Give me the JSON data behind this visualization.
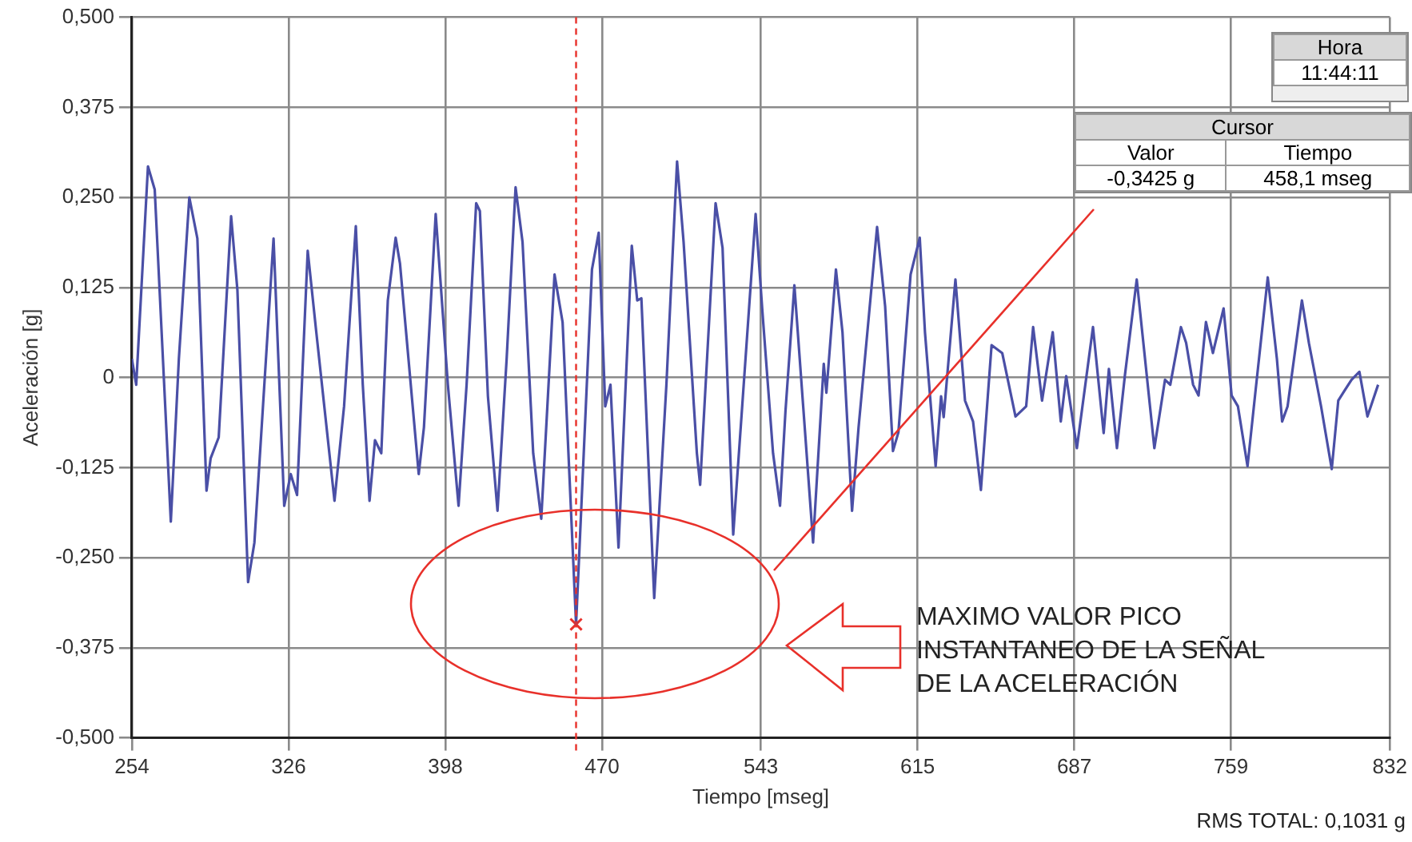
{
  "chart_data": {
    "type": "line",
    "xlabel": "Tiempo [mseg]",
    "ylabel": "Aceleración [g]",
    "xlim": [
      254,
      832
    ],
    "xticks": [
      254,
      326,
      398,
      470,
      543,
      615,
      687,
      759,
      832
    ],
    "ylim": [
      -0.5,
      0.5
    ],
    "yticks": [
      {
        "value": -0.5,
        "label": "-0,500"
      },
      {
        "value": -0.375,
        "label": "-0,375"
      },
      {
        "value": -0.25,
        "label": "-0,250"
      },
      {
        "value": -0.125,
        "label": "-0,125"
      },
      0,
      {
        "value": 0.125,
        "label": "0,125"
      },
      {
        "value": 0.25,
        "label": "0,250"
      },
      {
        "value": 0.375,
        "label": "0,375"
      },
      {
        "value": 0.5,
        "label": "0,500"
      }
    ],
    "grid": true,
    "legend": false,
    "series": [
      {
        "color": "#4a4fa6",
        "marker": "none",
        "x": [
          254.0,
          256.0,
          261.4,
          264.5,
          271.9,
          275.6,
          280.4,
          284.1,
          288.3,
          290.2,
          293.9,
          299.6,
          302.5,
          307.4,
          310.3,
          319.1,
          324.0,
          327.0,
          329.9,
          334.8,
          338.7,
          347.1,
          351.5,
          356.9,
          360.1,
          363.2,
          365.7,
          368.6,
          371.6,
          375.2,
          377.2,
          385.8,
          388.2,
          393.6,
          399.2,
          404.1,
          407.8,
          412.2,
          413.9,
          417.6,
          422.0,
          426.2,
          430.3,
          433.5,
          438.4,
          442.1,
          448.2,
          451.9,
          458.1,
          465.4,
          468.5,
          471.5,
          473.9,
          477.6,
          483.7,
          486.2,
          488.1,
          494.0,
          499.6,
          504.5,
          507.5,
          513.6,
          515.1,
          522.2,
          525.4,
          530.3,
          540.6,
          543.7,
          548.6,
          551.8,
          554.3,
          558.4,
          567.0,
          571.9,
          573.1,
          577.5,
          580.5,
          584.9,
          587.9,
          596.4,
          600.1,
          603.7,
          606.2,
          611.8,
          616.0,
          618.4,
          623.3,
          625.8,
          627.0,
          632.4,
          636.8,
          640.5,
          644.1,
          649.0,
          653.9,
          660.0,
          664.9,
          668.1,
          672.2,
          677.1,
          680.8,
          683.3,
          688.2,
          695.6,
          700.5,
          702.9,
          706.6,
          710.3,
          715.7,
          723.8,
          728.7,
          731.1,
          736.0,
          738.4,
          741.6,
          744.1,
          747.5,
          750.7,
          755.6,
          759.3,
          762.2,
          766.6,
          770.3,
          775.9,
          780.1,
          782.5,
          785.0,
          791.6,
          794.8,
          800.4,
          805.3,
          808.3,
          811.2,
          814.4,
          818.0,
          821.7,
          826.6
        ],
        "values": [
          0.026,
          -0.01,
          0.293,
          0.261,
          -0.2,
          0.026,
          0.25,
          0.193,
          -0.157,
          -0.112,
          -0.083,
          0.224,
          0.121,
          -0.284,
          -0.229,
          0.193,
          -0.178,
          -0.134,
          -0.163,
          0.176,
          0.064,
          -0.171,
          -0.04,
          0.21,
          -0.01,
          -0.171,
          -0.087,
          -0.105,
          0.107,
          0.194,
          0.158,
          -0.134,
          -0.069,
          0.227,
          -0.01,
          -0.178,
          -0.01,
          0.242,
          0.231,
          -0.026,
          -0.185,
          0.026,
          0.264,
          0.188,
          -0.105,
          -0.196,
          0.143,
          0.077,
          -0.3425,
          0.15,
          0.201,
          -0.04,
          -0.01,
          -0.236,
          0.183,
          0.107,
          0.11,
          -0.306,
          -0.01,
          0.3,
          0.188,
          -0.105,
          -0.149,
          0.242,
          0.18,
          -0.218,
          0.227,
          0.092,
          -0.105,
          -0.178,
          -0.047,
          0.128,
          -0.229,
          0.019,
          -0.021,
          0.15,
          0.063,
          -0.185,
          -0.069,
          0.209,
          0.099,
          -0.102,
          -0.076,
          0.143,
          0.194,
          0.063,
          -0.123,
          -0.026,
          -0.055,
          0.136,
          -0.032,
          -0.061,
          -0.156,
          0.045,
          0.034,
          -0.054,
          -0.04,
          0.07,
          -0.032,
          0.063,
          -0.061,
          0.002,
          -0.098,
          0.07,
          -0.077,
          0.012,
          -0.098,
          0.004,
          0.136,
          -0.098,
          -0.003,
          -0.01,
          0.07,
          0.048,
          -0.01,
          -0.025,
          0.077,
          0.034,
          0.096,
          -0.025,
          -0.04,
          -0.123,
          -0.018,
          0.139,
          0.026,
          -0.061,
          -0.04,
          0.107,
          0.048,
          -0.04,
          -0.127,
          -0.032,
          -0.018,
          -0.003,
          0.008,
          -0.054,
          -0.01
        ]
      },
      {
        "type": "scatter",
        "color": "#e8302a",
        "marker": "cross",
        "x": [
          458.1
        ],
        "values": [
          -0.3425
        ]
      }
    ],
    "ref_lines": [
      {
        "axis": "x",
        "value": 458.1,
        "color": "#e8302a",
        "line_style": "dashed"
      }
    ],
    "annotations": [
      "Hora",
      "11:44:11",
      "Cursor",
      "Valor",
      "Tiempo",
      "-0,3425 g",
      "458,1 mseg",
      "MAXIMO VALOR PICO\nINSTANTANEO DE LA SEÑAL\nDE LA ACELERACIÓN",
      "RMS TOTAL: 0,1031 g"
    ]
  }
}
